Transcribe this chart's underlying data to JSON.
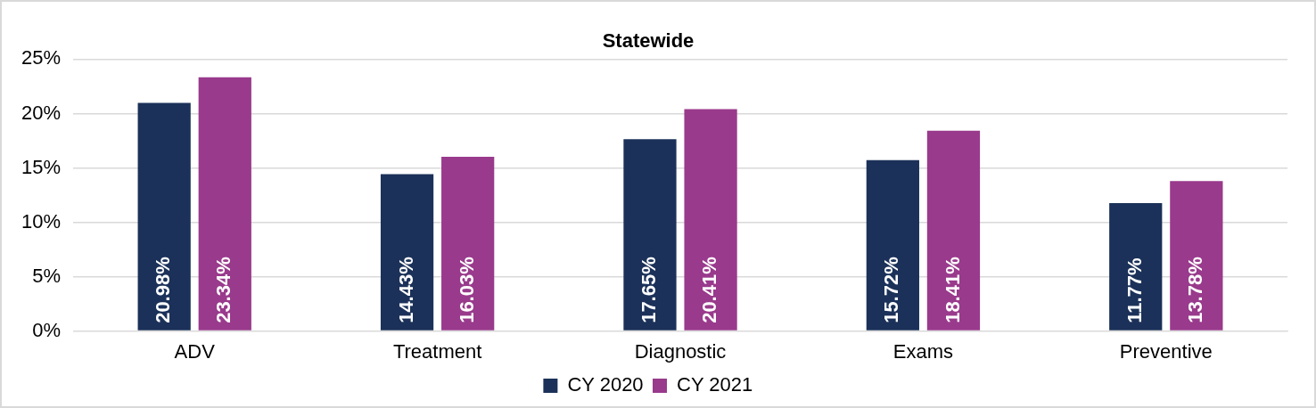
{
  "chart_data": {
    "type": "bar",
    "title": "Statewide",
    "categories": [
      "ADV",
      "Treatment",
      "Diagnostic",
      "Exams",
      "Preventive"
    ],
    "series": [
      {
        "name": "CY 2020",
        "color": "#1b3159",
        "values": [
          20.98,
          14.43,
          17.65,
          15.72,
          11.77
        ],
        "value_labels": [
          "20.98%",
          "14.43%",
          "17.65%",
          "15.72%",
          "11.77%"
        ]
      },
      {
        "name": "CY 2021",
        "color": "#993a8c",
        "values": [
          23.34,
          16.03,
          20.41,
          18.41,
          13.78
        ],
        "value_labels": [
          "23.34%",
          "16.03%",
          "20.41%",
          "18.41%",
          "13.78%"
        ]
      }
    ],
    "ylim": [
      0,
      25
    ],
    "yticks": [
      {
        "value": 0,
        "label": "0%"
      },
      {
        "value": 5,
        "label": "5%"
      },
      {
        "value": 10,
        "label": "10%"
      },
      {
        "value": 15,
        "label": "15%"
      },
      {
        "value": 20,
        "label": "20%"
      },
      {
        "value": 25,
        "label": "25%"
      }
    ],
    "grid": "y",
    "legend": "bottom"
  }
}
